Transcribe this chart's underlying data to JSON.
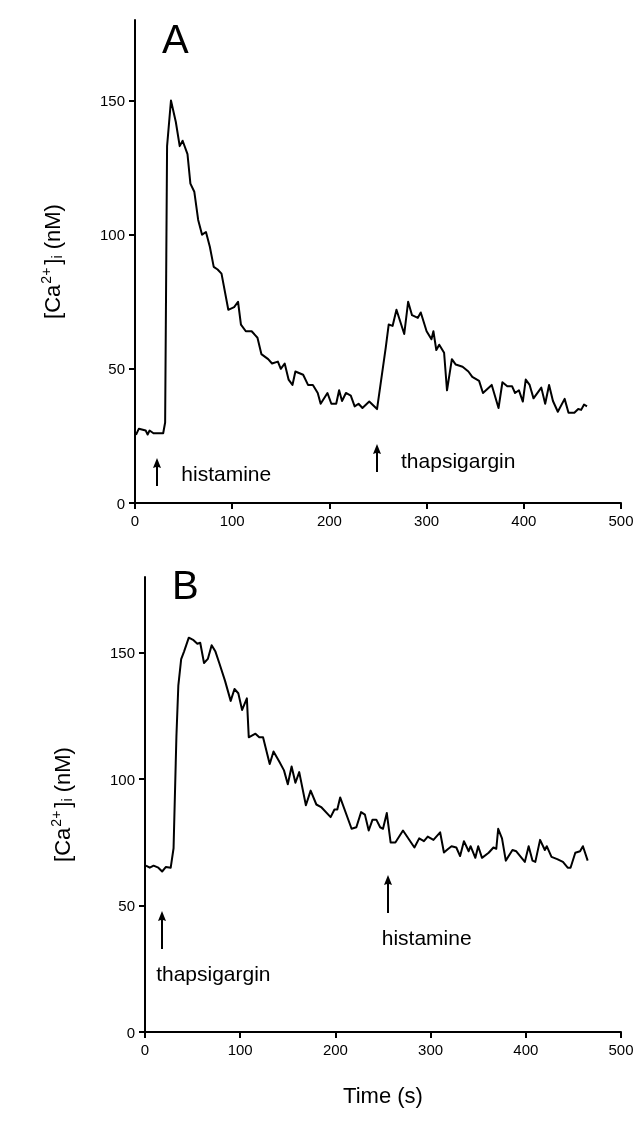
{
  "chart_data": [
    {
      "type": "line",
      "title": "A",
      "ylabel": "[Ca$^{2+}$]$_{i}$ (nM)",
      "xlim": [
        0,
        500
      ],
      "xticks": [
        0,
        100,
        200,
        300,
        400,
        500
      ],
      "ylim": [
        0,
        180
      ],
      "yticks": [
        0,
        50,
        100,
        150
      ],
      "grid": false,
      "marker": "none",
      "line_style": "solid",
      "annotations": [
        "histamine",
        "thapsigargin"
      ],
      "series": [
        {
          "color": "#000000",
          "x": [
            1,
            4,
            11,
            13,
            15,
            19,
            29,
            31,
            33,
            37,
            42,
            46,
            49,
            54,
            57,
            61,
            65,
            69,
            73,
            77,
            81,
            85,
            89,
            96,
            102,
            106,
            109,
            114,
            120,
            126,
            130,
            137,
            141,
            147,
            150,
            154,
            158,
            162,
            165,
            173,
            178,
            183,
            188,
            191,
            198,
            202,
            207,
            210,
            213,
            217,
            222,
            226,
            230,
            234,
            241,
            249,
            258,
            261,
            265,
            269,
            277,
            281,
            285,
            291,
            294,
            300,
            305,
            307,
            310,
            313,
            318,
            321,
            326,
            330,
            337,
            343,
            347,
            354,
            358,
            367,
            374,
            378,
            383,
            388,
            391,
            395,
            399,
            402,
            406,
            410,
            418,
            422,
            426,
            430,
            435,
            442,
            446,
            452,
            456,
            459,
            462,
            465
          ],
          "values": [
            25.4,
            27.7,
            27,
            25.5,
            27,
            26,
            26,
            30,
            133,
            150,
            142,
            133,
            135,
            130,
            119,
            116,
            105.5,
            100,
            101,
            95.5,
            88,
            87,
            85.5,
            72,
            73,
            75,
            66.5,
            64,
            64,
            61.6,
            55.5,
            53.6,
            52,
            52.7,
            50,
            52,
            46,
            44,
            49,
            47.8,
            44,
            44,
            41,
            37,
            41,
            37,
            37,
            42,
            38,
            41,
            40,
            36,
            37,
            35.4,
            37.8,
            35,
            58,
            66.5,
            66,
            72,
            63,
            75,
            70,
            69,
            71,
            64,
            61,
            64,
            57,
            59,
            56,
            42,
            53.6,
            51.6,
            50.8,
            49,
            47,
            45.5,
            41,
            44,
            35.4,
            45,
            43.5,
            43.5,
            41,
            42,
            37.8,
            46,
            44,
            39,
            43,
            37,
            44,
            38,
            34,
            38.8,
            33.6,
            33.6,
            35,
            34.7,
            36.7,
            36
          ]
        }
      ]
    },
    {
      "type": "line",
      "title": "B",
      "xlabel": "Time (s)",
      "ylabel": "[Ca$^{2+}$]$_{i}$ (nM)",
      "xlim": [
        0,
        500
      ],
      "xticks": [
        0,
        100,
        200,
        300,
        400,
        500
      ],
      "ylim": [
        0,
        180
      ],
      "yticks": [
        0,
        50,
        100,
        150
      ],
      "grid": false,
      "marker": "none",
      "line_style": "solid",
      "annotations": [
        "thapsigargin",
        "histamine"
      ],
      "series": [
        {
          "color": "#000000",
          "x": [
            1,
            5,
            9,
            14,
            18,
            22,
            27,
            30,
            33,
            35,
            38,
            41,
            46,
            51,
            55,
            58,
            62,
            66,
            70,
            74,
            78,
            84,
            90,
            94,
            98,
            102,
            107,
            109,
            116,
            120,
            124,
            131,
            135,
            141,
            146,
            150,
            154,
            158,
            162,
            169,
            174,
            180,
            185,
            195,
            199,
            202,
            205,
            217,
            222,
            227,
            231,
            235,
            239,
            243,
            247,
            250,
            254,
            258,
            263,
            271,
            283,
            288,
            293,
            297,
            303,
            310,
            314,
            318,
            322,
            327,
            331,
            335,
            340,
            342,
            347,
            350,
            354,
            361,
            366,
            369,
            371,
            375,
            379,
            386,
            390,
            399,
            403,
            407,
            410,
            415,
            420,
            422,
            427,
            433,
            439,
            444,
            447,
            452,
            457,
            460,
            465
          ],
          "values": [
            65.8,
            65,
            65.8,
            65,
            63.5,
            65.3,
            65,
            72.7,
            117,
            137,
            147.5,
            150.5,
            156,
            155,
            153.6,
            154,
            146,
            147.6,
            153,
            150.5,
            146,
            139,
            131,
            135.7,
            134,
            127.4,
            132,
            116.6,
            118,
            116.6,
            116.6,
            106,
            111,
            107,
            103.5,
            98,
            105,
            98.6,
            102.8,
            89.7,
            95.5,
            90,
            89,
            85,
            88,
            88,
            92.8,
            80.4,
            81,
            87,
            86,
            79.7,
            84,
            84,
            81,
            80.4,
            86.6,
            75,
            75,
            79.7,
            73,
            76.6,
            75.5,
            77.3,
            76,
            79,
            71,
            72.3,
            73.5,
            73,
            69.6,
            75.5,
            71.5,
            73.5,
            68.9,
            73.5,
            68.9,
            70.9,
            73,
            72.5,
            80.4,
            76.6,
            67.8,
            72,
            71.5,
            67.3,
            73.5,
            67.8,
            67.3,
            76,
            72,
            73.5,
            69.3,
            68.4,
            67.3,
            65,
            65,
            70.9,
            71.5,
            73.5,
            67.8
          ]
        }
      ]
    }
  ]
}
